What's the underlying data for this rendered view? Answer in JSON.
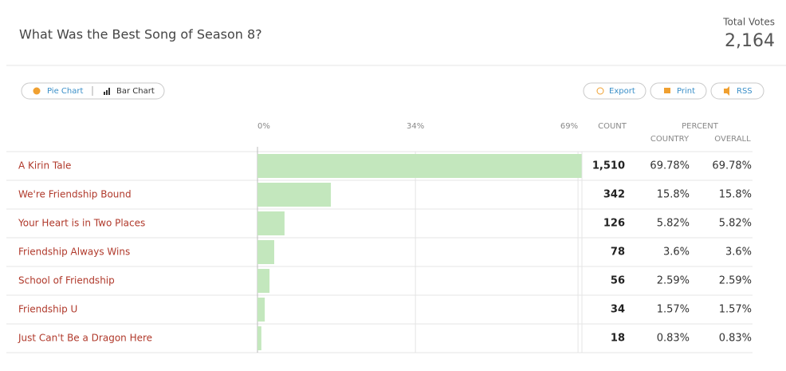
{
  "header": {
    "title": "What Was the Best Song of Season 8?",
    "total_label": "Total Votes",
    "total": "2,164"
  },
  "toolbar": {
    "pie": "Pie Chart",
    "bar": "Bar Chart",
    "export": "Export",
    "print": "Print",
    "rss": "RSS"
  },
  "chart_data": {
    "type": "bar",
    "orientation": "horizontal",
    "categories": [
      "A Kirin Tale",
      "We're Friendship Bound",
      "Your Heart is in Two Places",
      "Friendship Always Wins",
      "School of Friendship",
      "Friendship U",
      "Just Can't Be a Dragon Here"
    ],
    "values": [
      69.78,
      15.8,
      5.82,
      3.6,
      2.59,
      1.57,
      0.83
    ],
    "value_labels": [
      "69.78%",
      "15.8%",
      "5.82%",
      "3.6%",
      "2.59%",
      "1.57%",
      "0.83%"
    ],
    "country_percents": [
      "69.78%",
      "15.8%",
      "5.82%",
      "3.6%",
      "2.59%",
      "1.57%",
      "0.83%"
    ],
    "counts": [
      "1,510",
      "342",
      "126",
      "78",
      "56",
      "34",
      "18"
    ],
    "columns": {
      "count": "COUNT",
      "percent": "PERCENT",
      "country": "COUNTRY",
      "overall": "OVERALL"
    },
    "xlim": [
      0,
      69.5
    ],
    "xticks": [
      {
        "value": 0,
        "label": "0%"
      },
      {
        "value": 34,
        "label": "34%"
      },
      {
        "value": 69,
        "label": "69%"
      }
    ],
    "color": "#c3e7bd",
    "grid": true
  }
}
